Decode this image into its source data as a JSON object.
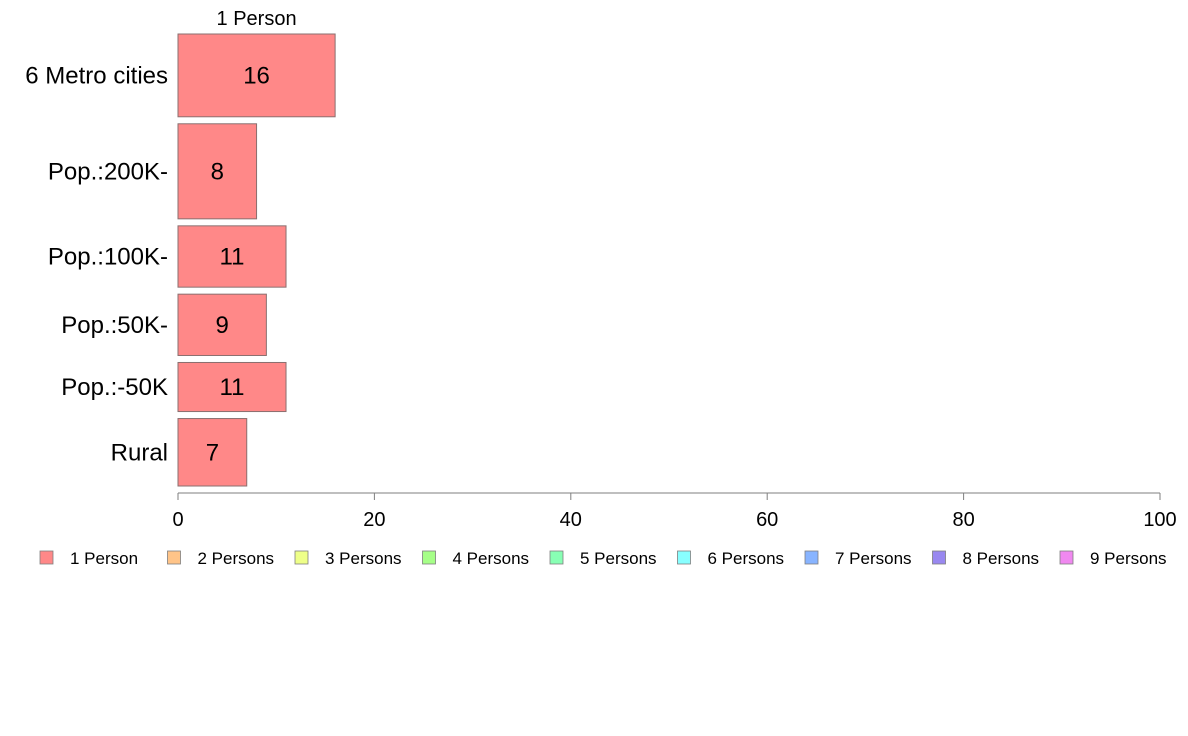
{
  "chart_data": {
    "type": "bar",
    "orientation": "horizontal",
    "stacked": true,
    "categories": [
      "6 Metro cities",
      "Pop.:200K-",
      "Pop.:100K-",
      "Pop.:50K-",
      "Pop.:-50K",
      "Rural"
    ],
    "category_weights": [
      1.35,
      1.55,
      1.0,
      1.0,
      0.8,
      1.1
    ],
    "series": [
      {
        "name": "1 Person",
        "color": "#ff8888",
        "values": [
          16,
          8,
          11,
          9,
          11,
          7
        ]
      }
    ],
    "series_header": "1 Person",
    "xlim": [
      0,
      100
    ],
    "xticks": [
      0,
      20,
      40,
      60,
      80,
      100
    ],
    "xtick_labels": [
      "0",
      "20",
      "40",
      "60",
      "80",
      "100"
    ],
    "data_labels": [
      "16",
      "8",
      "11",
      "9",
      "11",
      "7"
    ],
    "legend_position": "bottom",
    "legend": [
      {
        "label": "1 Person",
        "color": "#ff8888"
      },
      {
        "label": "2 Persons",
        "color": "#ffc488"
      },
      {
        "label": "3 Persons",
        "color": "#eeff88"
      },
      {
        "label": "4 Persons",
        "color": "#a6ff88"
      },
      {
        "label": "5 Persons",
        "color": "#88ffb4"
      },
      {
        "label": "6 Persons",
        "color": "#88ffff"
      },
      {
        "label": "7 Persons",
        "color": "#88b4ff"
      },
      {
        "label": "8 Persons",
        "color": "#9988f0"
      },
      {
        "label": "9 Persons",
        "color": "#f088f0"
      }
    ],
    "grid": false
  }
}
